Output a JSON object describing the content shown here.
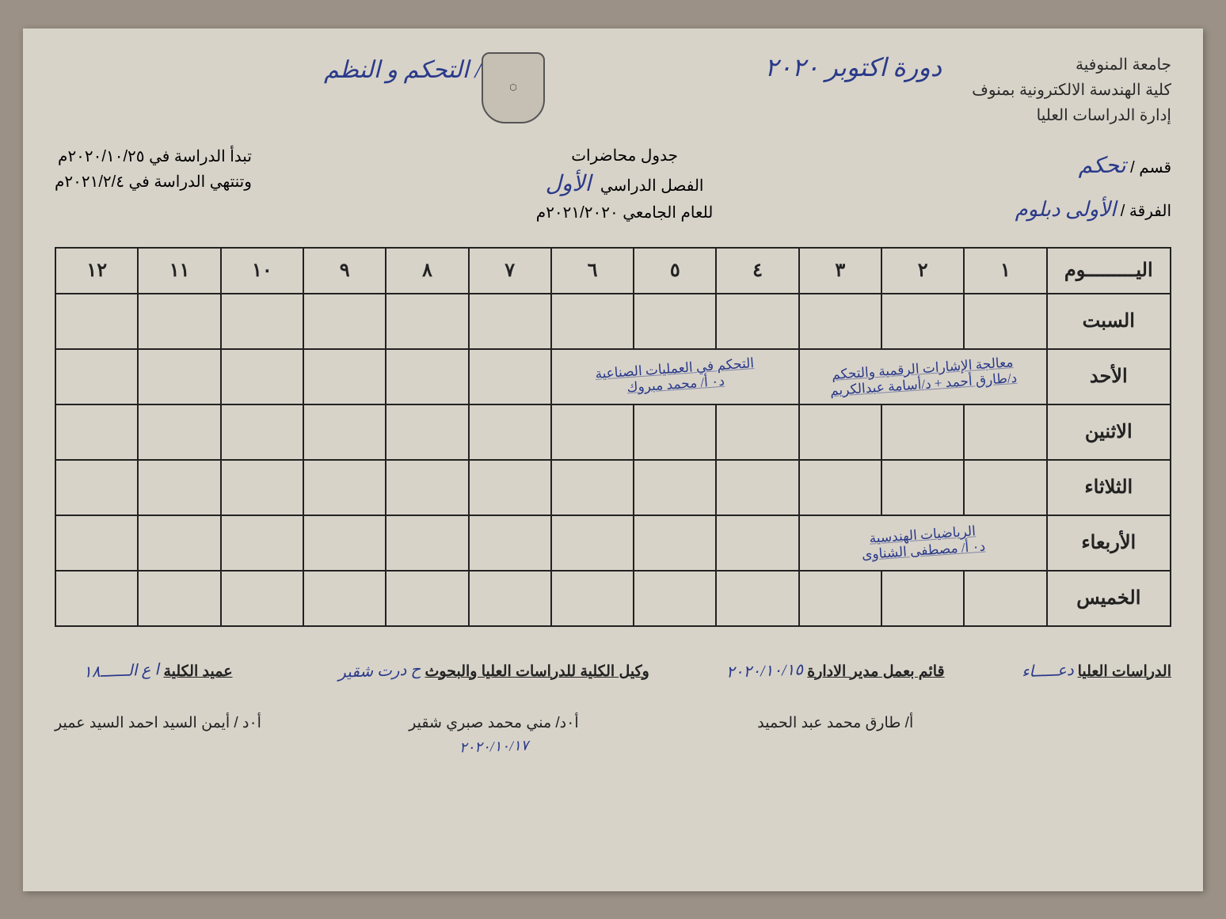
{
  "header": {
    "university": "جامعة المنوفية",
    "faculty": "كلية الهندسة الالكترونية بمنوف",
    "administration": "إدارة الدراسات العليا",
    "dept_label": "قسم /",
    "dept_value": "تحكم",
    "year_label": "الفرقة /",
    "year_value": "الأولى دبلوم",
    "session_hw": "دورة اكتوبر ٢٠٢٠",
    "subject_hw": "٣/ التحكم و النظم",
    "table_title_1": "جدول محاضرات",
    "table_title_2": "الفصل الدراسي",
    "semester_hw": "الأول",
    "academic_year_label": "للعام الجامعي",
    "academic_year": "٢٠٢١/٢٠٢٠م",
    "start_label": "تبدأ الدراسة في",
    "start_date": "٢٠٢٠/١٠/٢٥م",
    "end_label": "وتنتهي الدراسة في",
    "end_date": "٢٠٢١/٢/٤م"
  },
  "table": {
    "day_header": "اليـــــــــوم",
    "periods": [
      "١",
      "٢",
      "٣",
      "٤",
      "٥",
      "٦",
      "٧",
      "٨",
      "٩",
      "١٠",
      "١١",
      "١٢"
    ],
    "days": [
      "السبت",
      "الأحد",
      "الاثنين",
      "الثلاثاء",
      "الأربعاء",
      "الخميس"
    ],
    "entry_sun_a": "معالجة الإشارات الرقمية والتحكم\nد/طارق أحمد + د/أسامة عبدالكريم",
    "entry_sun_b": "التحكم في العمليات الصناعية\nد٠ أ/ محمد مبروك",
    "entry_wed": "الرياضيات الهندسية\nد٠ أ/ مصطفى الشناوى"
  },
  "footer": {
    "s1_title": "الدراسات العليا",
    "s1_name": "دعـــــاء",
    "s2_title": "قائم بعمل مدير الادارة",
    "s2_name": "أ/ طارق محمد عبد الحميد",
    "s2_date": "٢٠٢٠/١٠/١٥",
    "s3_title": "وكيل الكلية للدراسات العليا والبحوث",
    "s3_name": "أ٠د/ مني محمد صبري شقير",
    "s3_date": "٢٠٢٠/١٠/١٧",
    "s4_title": "عميد الكلية",
    "s4_name": "أ٠د / أيمن السيد احمد السيد عمير",
    "s4_date": "١٨"
  },
  "style": {
    "ink_color": "#2a3a8a",
    "print_color": "#222222",
    "paper_color": "#d8d3c9",
    "border_color": "#222222",
    "header_fontsize": 20,
    "table_fontsize": 24,
    "col_widths": {
      "day": 150,
      "period": 100
    },
    "row_height_header": 58,
    "row_height_body": 70
  }
}
